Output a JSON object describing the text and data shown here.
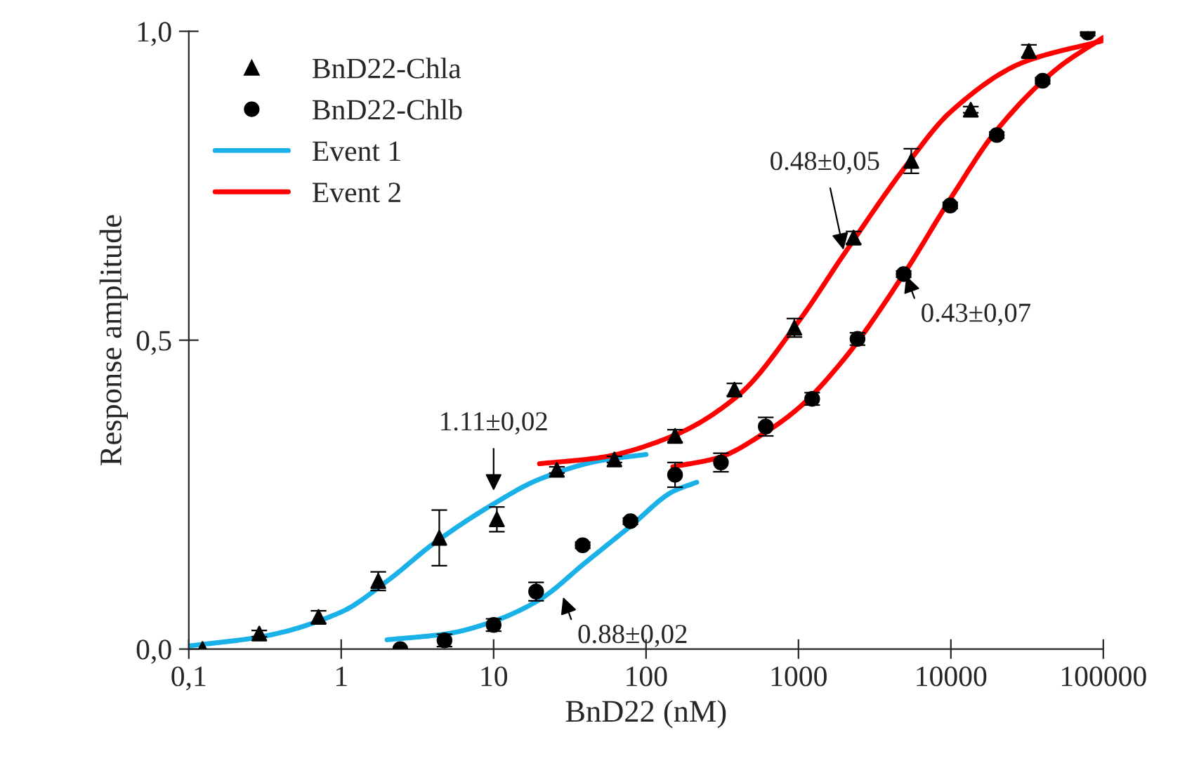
{
  "chart_data": {
    "type": "scatter",
    "xlabel": "BnD22 (nM)",
    "ylabel": "Response amplitude",
    "log": "x",
    "xlim": [
      0.1,
      100000
    ],
    "ylim": [
      0,
      1
    ],
    "xticks": [
      {
        "value": 0.1,
        "label": "0,1"
      },
      1,
      10,
      100,
      1000,
      10000,
      100000
    ],
    "yticks": [
      {
        "value": 0,
        "label": "0,0"
      },
      {
        "value": 0.5,
        "label": "0,5"
      },
      {
        "value": 1,
        "label": "1,0"
      }
    ],
    "grid": false,
    "legend": "top left",
    "series": [
      {
        "name": "BnD22-Chla",
        "marker": "triangle",
        "color": "#000000",
        "x": [
          0.123,
          0.29,
          0.71,
          1.75,
          4.4,
          10.5,
          26,
          62,
          155,
          380,
          940,
          2300,
          5500,
          13500,
          32500
        ],
        "values": [
          0,
          0.025,
          0.052,
          0.11,
          0.18,
          0.21,
          0.29,
          0.307,
          0.345,
          0.42,
          0.52,
          0.666,
          0.79,
          0.873,
          0.968
        ],
        "errors": [
          null,
          0.005,
          0.01,
          0.015,
          0.045,
          0.02,
          0.005,
          0.005,
          0.01,
          0.01,
          0.015,
          0.01,
          0.02,
          0.005,
          0.01
        ]
      },
      {
        "name": "BnD22-Chlb",
        "marker": "circle",
        "color": "#000000",
        "x": [
          2.44,
          4.76,
          10,
          19,
          38.4,
          79,
          155,
          310,
          610,
          1230,
          2440,
          4900,
          9900,
          20000,
          40000,
          79000
        ],
        "values": [
          0,
          0.014,
          0.039,
          0.093,
          0.168,
          0.207,
          0.282,
          0.302,
          0.36,
          0.405,
          0.502,
          0.607,
          0.718,
          0.832,
          0.92,
          0.998
        ],
        "errors": [
          null,
          0.01,
          0.01,
          0.015,
          0.005,
          0.005,
          0.02,
          0.015,
          0.015,
          0.01,
          0.01,
          0.005,
          0.005,
          0.005,
          0.005,
          0.005
        ]
      },
      {
        "name": "Event 1",
        "type": "line",
        "color": "#1ab0e8",
        "x": [
          0.1,
          0.3,
          1,
          2,
          4,
          10,
          20,
          50,
          100
        ],
        "values": [
          0.005,
          0.02,
          0.06,
          0.11,
          0.17,
          0.235,
          0.275,
          0.305,
          0.315
        ]
      },
      {
        "type": "line",
        "color": "#1ab0e8",
        "x": [
          2,
          5,
          10,
          20,
          40,
          80,
          150,
          215
        ],
        "values": [
          0.015,
          0.025,
          0.045,
          0.08,
          0.14,
          0.2,
          0.255,
          0.27
        ]
      },
      {
        "name": "Event 2",
        "type": "line",
        "color": "#ff0000",
        "x": [
          20,
          50,
          150,
          400,
          1000,
          2000,
          5000,
          10000,
          30000,
          100000
        ],
        "values": [
          0.3,
          0.31,
          0.345,
          0.41,
          0.53,
          0.64,
          0.78,
          0.87,
          0.95,
          0.985
        ]
      },
      {
        "type": "line",
        "color": "#ff0000",
        "x": [
          150,
          300,
          600,
          1000,
          2000,
          5000,
          10000,
          20000,
          50000,
          100000
        ],
        "values": [
          0.295,
          0.31,
          0.35,
          0.39,
          0.47,
          0.61,
          0.73,
          0.84,
          0.94,
          0.99
        ]
      }
    ],
    "annotations": [
      {
        "text": "1.11±0,02",
        "x": 10,
        "y": 0.25
      },
      {
        "text": "0.88±0,02",
        "x": 28,
        "y": 0.09
      },
      {
        "text": "0.48±0,05",
        "x": 2000,
        "y": 0.64
      },
      {
        "text": "0.43±0,07",
        "x": 5000,
        "y": 0.61
      }
    ]
  }
}
